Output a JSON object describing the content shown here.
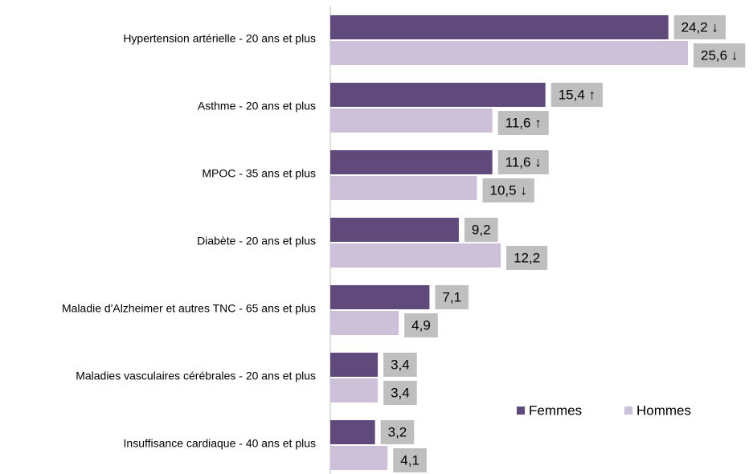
{
  "chart_data": {
    "type": "bar",
    "orientation": "horizontal",
    "categories": [
      "Hypertension artérielle - 20 ans et plus",
      "Asthme - 20 ans et plus",
      "MPOC - 35 ans et plus",
      "Diabète - 20 ans et plus",
      "Maladie d'Alzheimer et autres TNC - 65 ans et plus",
      "Maladies vasculaires cérébrales - 20 ans et plus",
      "Insuffisance cardiaque - 40 ans et plus"
    ],
    "series": [
      {
        "name": "Femmes",
        "color": "#604a7b",
        "values": [
          24.2,
          15.4,
          11.6,
          9.2,
          7.1,
          3.4,
          3.2
        ],
        "value_labels": [
          "24,2 ↓",
          "15,4 ↑",
          "11,6 ↓",
          "9,2",
          "7,1",
          "3,4",
          "3,2"
        ]
      },
      {
        "name": "Hommes",
        "color": "#ccc1d9",
        "values": [
          25.6,
          11.6,
          10.5,
          12.2,
          4.9,
          3.4,
          4.1
        ],
        "value_labels": [
          "25,6 ↓",
          "11,6 ↑",
          "10,5 ↓",
          "12,2",
          "4,9",
          "3,4",
          "4,1"
        ]
      }
    ],
    "label_box_color": "#bfbfbf",
    "legend": "bottom-right"
  }
}
